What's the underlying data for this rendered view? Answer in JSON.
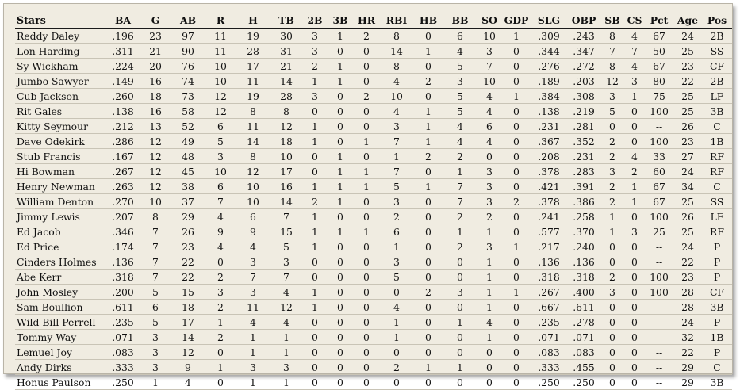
{
  "table": {
    "columns": [
      "Stars",
      "BA",
      "G",
      "AB",
      "R",
      "H",
      "TB",
      "2B",
      "3B",
      "HR",
      "RBI",
      "HB",
      "BB",
      "SO",
      "GDP",
      "SLG",
      "OBP",
      "SB",
      "CS",
      "Pct",
      "Age",
      "Pos"
    ],
    "rows": [
      [
        "Reddy Daley",
        ".196",
        "23",
        "97",
        "11",
        "19",
        "30",
        "3",
        "1",
        "2",
        "8",
        "0",
        "6",
        "10",
        "1",
        ".309",
        ".243",
        "8",
        "4",
        "67",
        "24",
        "2B"
      ],
      [
        "Lon Harding",
        ".311",
        "21",
        "90",
        "11",
        "28",
        "31",
        "3",
        "0",
        "0",
        "14",
        "1",
        "4",
        "3",
        "0",
        ".344",
        ".347",
        "7",
        "7",
        "50",
        "25",
        "SS"
      ],
      [
        "Sy Wickham",
        ".224",
        "20",
        "76",
        "10",
        "17",
        "21",
        "2",
        "1",
        "0",
        "8",
        "0",
        "5",
        "7",
        "0",
        ".276",
        ".272",
        "8",
        "4",
        "67",
        "23",
        "CF"
      ],
      [
        "Jumbo Sawyer",
        ".149",
        "16",
        "74",
        "10",
        "11",
        "14",
        "1",
        "1",
        "0",
        "4",
        "2",
        "3",
        "10",
        "0",
        ".189",
        ".203",
        "12",
        "3",
        "80",
        "22",
        "2B"
      ],
      [
        "Cub Jackson",
        ".260",
        "18",
        "73",
        "12",
        "19",
        "28",
        "3",
        "0",
        "2",
        "10",
        "0",
        "5",
        "4",
        "1",
        ".384",
        ".308",
        "3",
        "1",
        "75",
        "25",
        "LF"
      ],
      [
        "Rit Gales",
        ".138",
        "16",
        "58",
        "12",
        "8",
        "8",
        "0",
        "0",
        "0",
        "4",
        "1",
        "5",
        "4",
        "0",
        ".138",
        ".219",
        "5",
        "0",
        "100",
        "25",
        "3B"
      ],
      [
        "Kitty Seymour",
        ".212",
        "13",
        "52",
        "6",
        "11",
        "12",
        "1",
        "0",
        "0",
        "3",
        "1",
        "4",
        "6",
        "0",
        ".231",
        ".281",
        "0",
        "0",
        "--",
        "26",
        "C"
      ],
      [
        "Dave Odekirk",
        ".286",
        "12",
        "49",
        "5",
        "14",
        "18",
        "1",
        "0",
        "1",
        "7",
        "1",
        "4",
        "4",
        "0",
        ".367",
        ".352",
        "2",
        "0",
        "100",
        "23",
        "1B"
      ],
      [
        "Stub Francis",
        ".167",
        "12",
        "48",
        "3",
        "8",
        "10",
        "0",
        "1",
        "0",
        "1",
        "2",
        "2",
        "0",
        "0",
        ".208",
        ".231",
        "2",
        "4",
        "33",
        "27",
        "RF"
      ],
      [
        "Hi Bowman",
        ".267",
        "12",
        "45",
        "10",
        "12",
        "17",
        "0",
        "1",
        "1",
        "7",
        "0",
        "1",
        "3",
        "0",
        ".378",
        ".283",
        "3",
        "2",
        "60",
        "24",
        "RF"
      ],
      [
        "Henry Newman",
        ".263",
        "12",
        "38",
        "6",
        "10",
        "16",
        "1",
        "1",
        "1",
        "5",
        "1",
        "7",
        "3",
        "0",
        ".421",
        ".391",
        "2",
        "1",
        "67",
        "34",
        "C"
      ],
      [
        "William Denton",
        ".270",
        "10",
        "37",
        "7",
        "10",
        "14",
        "2",
        "1",
        "0",
        "3",
        "0",
        "7",
        "3",
        "2",
        ".378",
        ".386",
        "2",
        "1",
        "67",
        "25",
        "SS"
      ],
      [
        "Jimmy Lewis",
        ".207",
        "8",
        "29",
        "4",
        "6",
        "7",
        "1",
        "0",
        "0",
        "2",
        "0",
        "2",
        "2",
        "0",
        ".241",
        ".258",
        "1",
        "0",
        "100",
        "26",
        "LF"
      ],
      [
        "Ed Jacob",
        ".346",
        "7",
        "26",
        "9",
        "9",
        "15",
        "1",
        "1",
        "1",
        "6",
        "0",
        "1",
        "1",
        "0",
        ".577",
        ".370",
        "1",
        "3",
        "25",
        "25",
        "RF"
      ],
      [
        "Ed Price",
        ".174",
        "7",
        "23",
        "4",
        "4",
        "5",
        "1",
        "0",
        "0",
        "1",
        "0",
        "2",
        "3",
        "1",
        ".217",
        ".240",
        "0",
        "0",
        "--",
        "24",
        "P"
      ],
      [
        "Cinders Holmes",
        ".136",
        "7",
        "22",
        "0",
        "3",
        "3",
        "0",
        "0",
        "0",
        "3",
        "0",
        "0",
        "1",
        "0",
        ".136",
        ".136",
        "0",
        "0",
        "--",
        "22",
        "P"
      ],
      [
        "Abe Kerr",
        ".318",
        "7",
        "22",
        "2",
        "7",
        "7",
        "0",
        "0",
        "0",
        "5",
        "0",
        "0",
        "1",
        "0",
        ".318",
        ".318",
        "2",
        "0",
        "100",
        "23",
        "P"
      ],
      [
        "John Mosley",
        ".200",
        "5",
        "15",
        "3",
        "3",
        "4",
        "1",
        "0",
        "0",
        "0",
        "2",
        "3",
        "1",
        "1",
        ".267",
        ".400",
        "3",
        "0",
        "100",
        "28",
        "CF"
      ],
      [
        "Sam Boullion",
        ".611",
        "6",
        "18",
        "2",
        "11",
        "12",
        "1",
        "0",
        "0",
        "4",
        "0",
        "0",
        "1",
        "0",
        ".667",
        ".611",
        "0",
        "0",
        "--",
        "28",
        "3B"
      ],
      [
        "Wild Bill Perrell",
        ".235",
        "5",
        "17",
        "1",
        "4",
        "4",
        "0",
        "0",
        "0",
        "1",
        "0",
        "1",
        "4",
        "0",
        ".235",
        ".278",
        "0",
        "0",
        "--",
        "24",
        "P"
      ],
      [
        "Tommy Way",
        ".071",
        "3",
        "14",
        "2",
        "1",
        "1",
        "0",
        "0",
        "0",
        "1",
        "0",
        "0",
        "1",
        "0",
        ".071",
        ".071",
        "0",
        "0",
        "--",
        "32",
        "1B"
      ],
      [
        "Lemuel Joy",
        ".083",
        "3",
        "12",
        "0",
        "1",
        "1",
        "0",
        "0",
        "0",
        "0",
        "0",
        "0",
        "0",
        "0",
        ".083",
        ".083",
        "0",
        "0",
        "--",
        "22",
        "P"
      ],
      [
        "Andy Dirks",
        ".333",
        "3",
        "9",
        "1",
        "3",
        "3",
        "0",
        "0",
        "0",
        "2",
        "1",
        "1",
        "0",
        "0",
        ".333",
        ".455",
        "0",
        "0",
        "--",
        "29",
        "C"
      ],
      [
        "Honus Paulson",
        ".250",
        "1",
        "4",
        "0",
        "1",
        "1",
        "0",
        "0",
        "0",
        "0",
        "0",
        "0",
        "0",
        "0",
        ".250",
        ".250",
        "0",
        "0",
        "--",
        "29",
        "3B"
      ]
    ]
  }
}
